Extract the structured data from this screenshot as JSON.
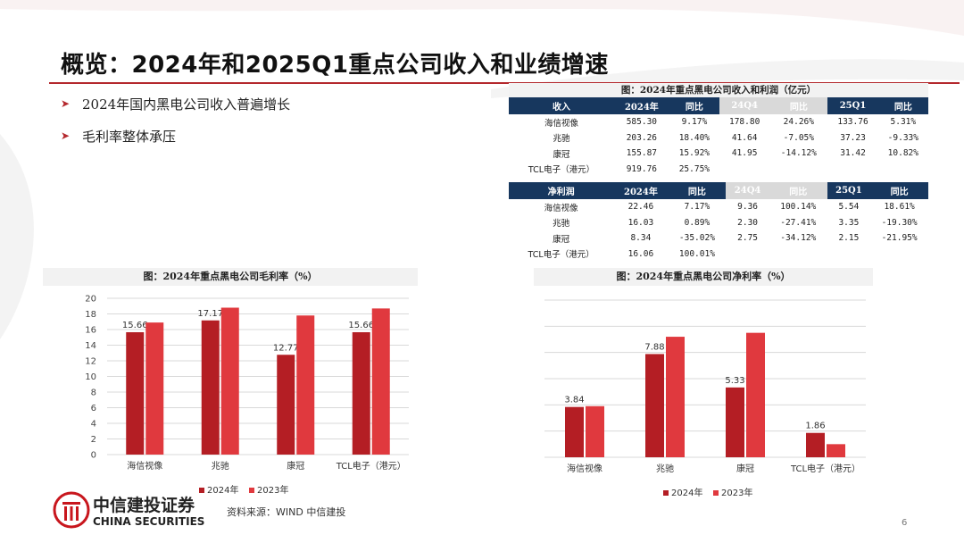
{
  "title": "概览：2024年和2025Q1重点公司收入和业绩增速",
  "bullets": [
    "2024年国内黑电公司收入普遍增长",
    "毛利率整体承压"
  ],
  "colors": {
    "accent": "#b4282d",
    "bar2024": "#b41e24",
    "bar2023": "#e0393e",
    "tableHeader": "#17375e"
  },
  "table": {
    "caption": "图：2024年重点黑电公司收入和利润（亿元）",
    "revenue": {
      "headers": [
        "收入",
        "2024年",
        "同比",
        "24Q4",
        "同比",
        "25Q1",
        "同比"
      ],
      "rows": [
        [
          "海信视像",
          "585.30",
          "9.17%",
          "178.80",
          "24.26%",
          "133.76",
          "5.31%"
        ],
        [
          "兆驰",
          "203.26",
          "18.40%",
          "41.64",
          "-7.05%",
          "37.23",
          "-9.33%"
        ],
        [
          "康冠",
          "155.87",
          "15.92%",
          "41.95",
          "-14.12%",
          "31.42",
          "10.82%"
        ],
        [
          "TCL电子（港元）",
          "919.76",
          "25.75%",
          "",
          "",
          "",
          ""
        ]
      ]
    },
    "profit": {
      "headers": [
        "净利润",
        "2024年",
        "同比",
        "24Q4",
        "同比",
        "25Q1",
        "同比"
      ],
      "rows": [
        [
          "海信视像",
          "22.46",
          "7.17%",
          "9.36",
          "100.14%",
          "5.54",
          "18.61%"
        ],
        [
          "兆驰",
          "16.03",
          "0.89%",
          "2.30",
          "-27.41%",
          "3.35",
          "-19.30%"
        ],
        [
          "康冠",
          "8.34",
          "-35.02%",
          "2.75",
          "-34.12%",
          "2.15",
          "-21.95%"
        ],
        [
          "TCL电子（港元）",
          "16.06",
          "100.01%",
          "",
          "",
          "",
          ""
        ]
      ]
    }
  },
  "chart_data": [
    {
      "type": "bar",
      "title": "图：2024年重点黑电公司毛利率（%）",
      "categories": [
        "海信视像",
        "兆驰",
        "康冠",
        "TCL电子（港元）"
      ],
      "series": [
        {
          "name": "2024年",
          "values": [
            15.66,
            17.17,
            12.77,
            15.66
          ],
          "labels": [
            "15.66",
            "17.17",
            "12.77",
            "15.66"
          ]
        },
        {
          "name": "2023年",
          "values": [
            16.9,
            18.8,
            17.8,
            18.7
          ]
        }
      ],
      "ylim": [
        0,
        20
      ],
      "yticks": [
        "0",
        "2",
        "4",
        "6",
        "8",
        "10",
        "12",
        "14",
        "16",
        "18",
        "20"
      ],
      "grid": true,
      "legend": "bottom"
    },
    {
      "type": "bar",
      "title": "图：2024年重点黑电公司净利率（%）",
      "categories": [
        "海信视像",
        "兆驰",
        "康冠",
        "TCL电子（港元）"
      ],
      "series": [
        {
          "name": "2024年",
          "values": [
            3.84,
            7.88,
            5.33,
            1.86
          ],
          "labels": [
            "3.84",
            "7.88",
            "5.33",
            "1.86"
          ]
        },
        {
          "name": "2023年",
          "values": [
            3.9,
            9.2,
            9.5,
            1.0
          ]
        }
      ],
      "ylim": [
        0,
        12
      ],
      "yticks": [
        "0",
        "2",
        "4",
        "6",
        "8",
        "10",
        "12"
      ],
      "grid": true,
      "legend": "bottom"
    }
  ],
  "logo": {
    "cn": "中信建投证券",
    "en": "CHINA SECURITIES"
  },
  "source": "资料来源：WIND 中信建投",
  "page": "6"
}
